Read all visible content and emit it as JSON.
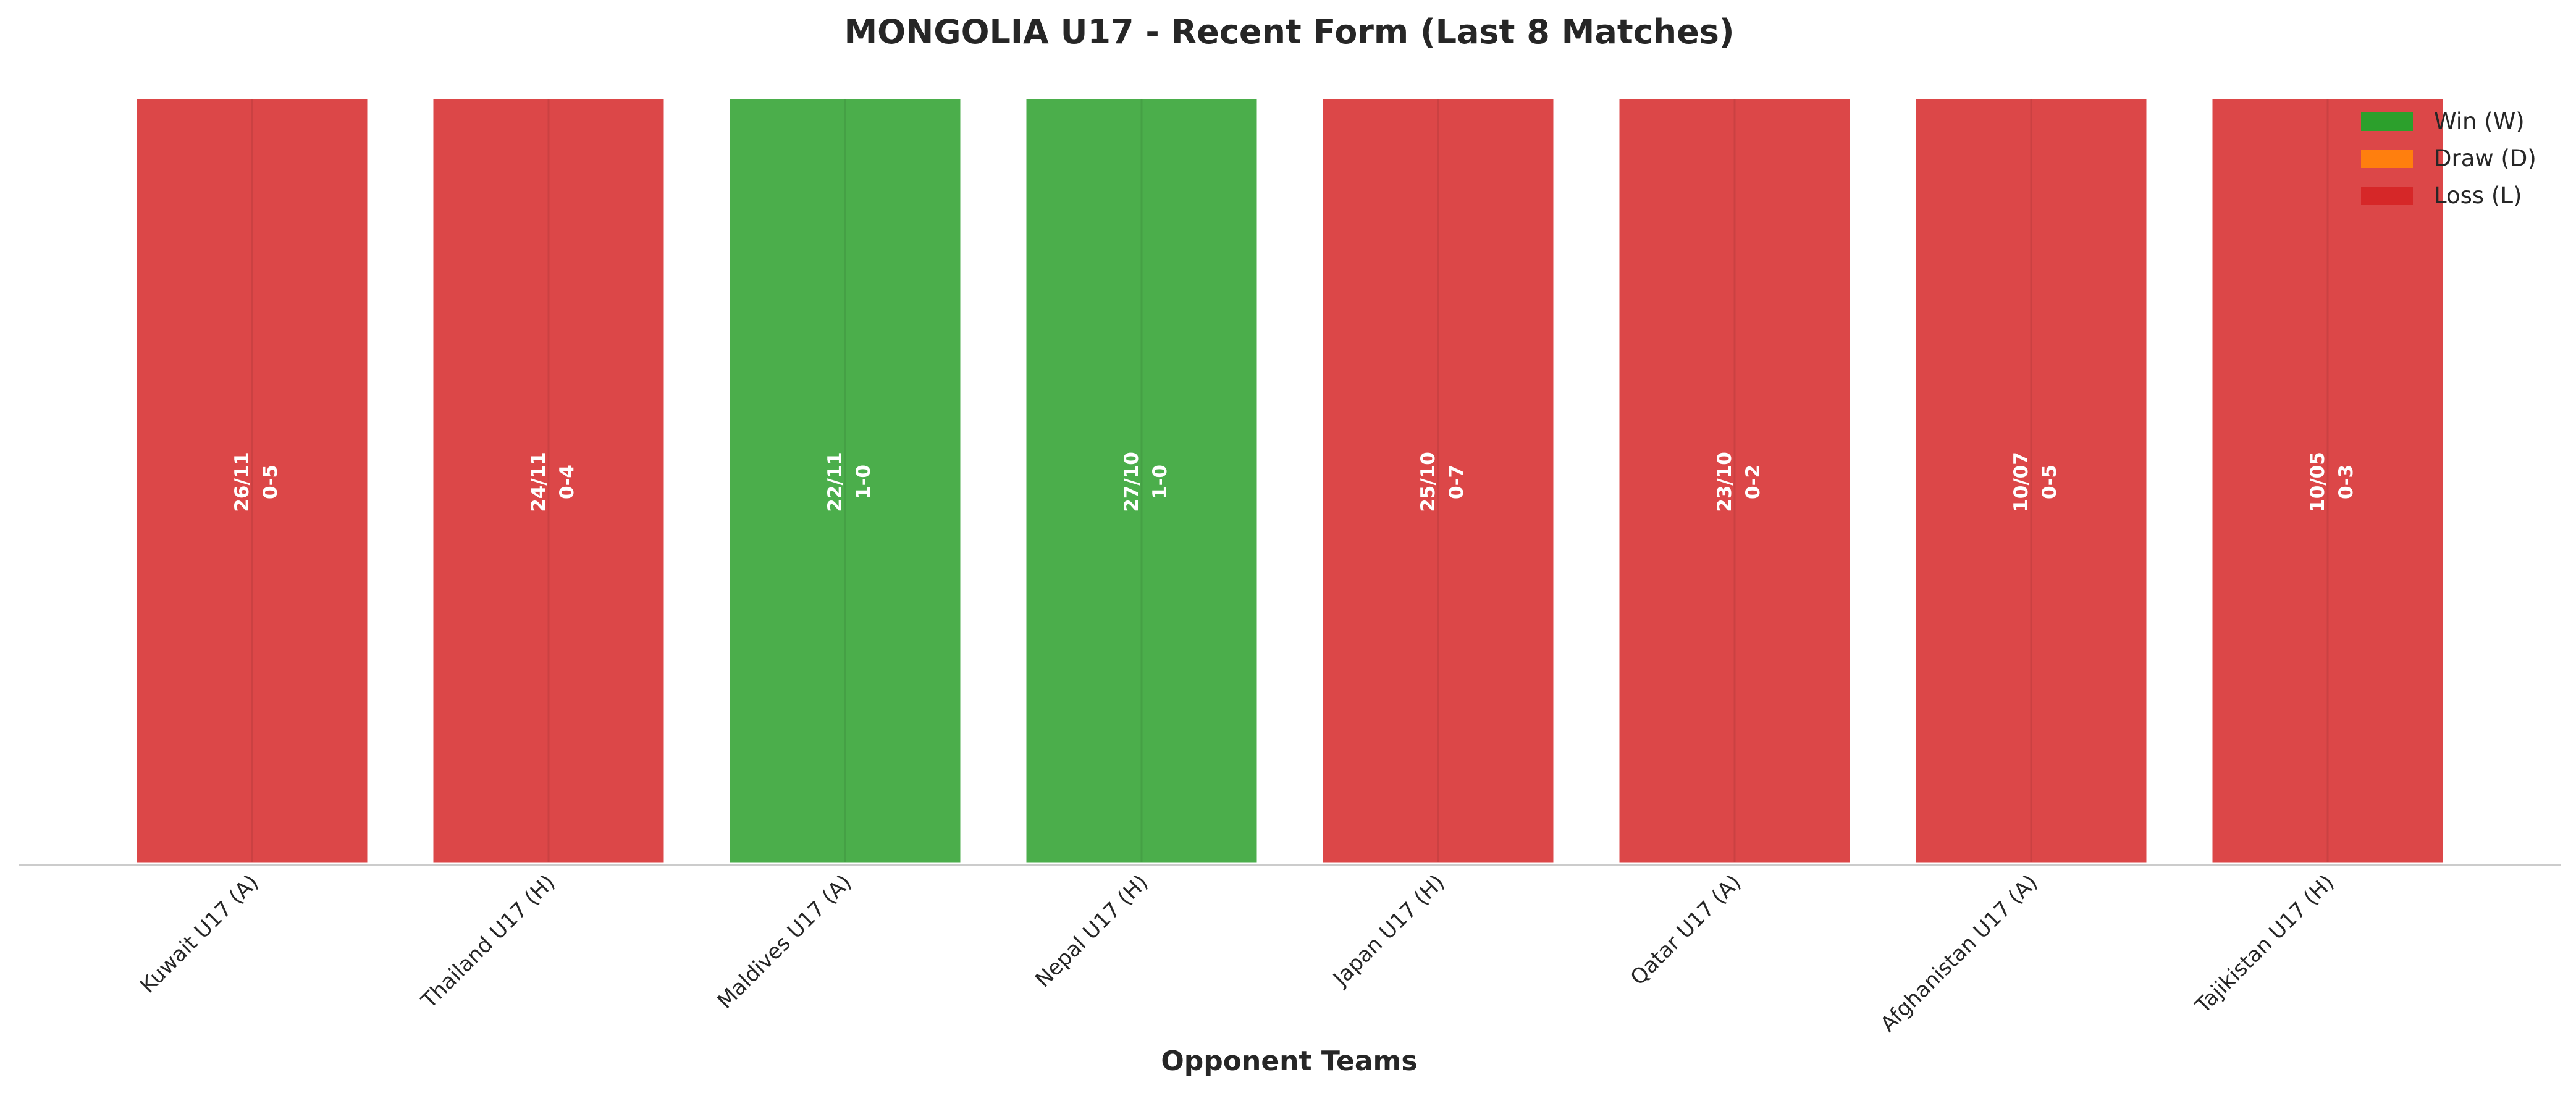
{
  "chart_data": {
    "type": "bar",
    "title": "MONGOLIA U17 - Recent Form (Last 8 Matches)",
    "xlabel": "Opponent Teams",
    "ylabel": "",
    "ylim": [
      0,
      1
    ],
    "grid": false,
    "legend_position": "top-right",
    "categories": [
      "Kuwait U17 (A)",
      "Thailand U17 (H)",
      "Maldives U17 (A)",
      "Nepal U17 (H)",
      "Japan U17 (H)",
      "Qatar U17 (A)",
      "Afghanistan U17 (A)",
      "Tajikistan U17 (H)"
    ],
    "values": [
      1,
      1,
      1,
      1,
      1,
      1,
      1,
      1
    ],
    "results": [
      "L",
      "L",
      "W",
      "W",
      "L",
      "L",
      "L",
      "L"
    ],
    "dates": [
      "26/11",
      "24/11",
      "22/11",
      "27/10",
      "25/10",
      "23/10",
      "10/07",
      "10/05"
    ],
    "scores": [
      "0-5",
      "0-4",
      "1-0",
      "1-0",
      "0-7",
      "0-2",
      "0-5",
      "0-3"
    ],
    "legend": [
      {
        "key": "W",
        "label": "Win (W)",
        "color": "#2ca02c"
      },
      {
        "key": "D",
        "label": "Draw (D)",
        "color": "#ff7f0e"
      },
      {
        "key": "L",
        "label": "Loss (L)",
        "color": "#d62728"
      }
    ]
  }
}
